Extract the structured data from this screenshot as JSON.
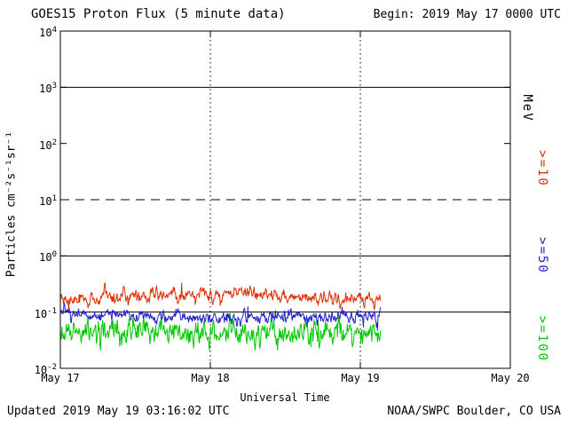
{
  "header": {
    "title": "GOES15 Proton Flux (5 minute data)",
    "begin_label": "Begin: 2019 May 17 0000 UTC"
  },
  "footer": {
    "updated": "Updated 2019 May 19 03:16:02 UTC",
    "source": "NOAA/SWPC Boulder, CO USA"
  },
  "chart_data": {
    "type": "line",
    "title": "GOES15 Proton Flux (5 minute data)",
    "subtitle": "Begin: 2019 May 17 0000 UTC",
    "xlabel": "Universal Time",
    "ylabel": "Particles cm⁻²s⁻¹sr⁻¹",
    "right_axis_label": "MeV",
    "x_axis": {
      "span_days": 3,
      "tick_labels": [
        "May 17",
        "May 18",
        "May 19",
        "May 20"
      ]
    },
    "y_axis": {
      "scale": "log",
      "min_exp": -2,
      "max_exp": 4,
      "tick_exponents": [
        4,
        3,
        2,
        1,
        0,
        -1,
        -2
      ]
    },
    "gridlines": {
      "horizontal": [
        {
          "exp": 3,
          "style": "solid"
        },
        {
          "exp": 1,
          "style": "dashed"
        },
        {
          "exp": 0,
          "style": "solid"
        },
        {
          "exp": -1,
          "style": "solid"
        }
      ],
      "vertical_dotted_at_days": [
        1,
        2
      ]
    },
    "data_coverage": {
      "start": "2019 May 17 0000 UTC",
      "end": "2019 May 19 03:15 UTC",
      "end_day_fraction": 2.136,
      "cadence_minutes": 5
    },
    "series": [
      {
        "name": ">=10",
        "unit": "MeV",
        "color": "#dd2f00",
        "approx_mean_flux": 0.18,
        "approx_flux_range": [
          0.12,
          0.33
        ],
        "sim": {
          "mean_log": -0.73,
          "ar": 0.62,
          "innov": 0.05,
          "wander_amp": 0.055,
          "wander_freq": 2.4,
          "wander_phase": -0.8,
          "clamp": [
            -0.95,
            -0.45
          ],
          "spike_prob": 0.01,
          "spike_log": 0.2
        }
      },
      {
        "name": ">=50",
        "unit": "MeV",
        "color": "#2020cc",
        "approx_mean_flux": 0.085,
        "approx_flux_range": [
          0.05,
          0.2
        ],
        "sim": {
          "mean_log": -1.08,
          "ar": 0.6,
          "innov": 0.05,
          "wander_amp": 0.03,
          "wander_freq": 3.0,
          "wander_phase": 1.0,
          "clamp": [
            -1.33,
            -0.66
          ],
          "spike_prob": 0.006,
          "spike_log": 0.3
        }
      },
      {
        "name": ">=100",
        "unit": "MeV",
        "color": "#00c800",
        "approx_mean_flux": 0.043,
        "approx_flux_range": [
          0.021,
          0.09
        ],
        "sim": {
          "mean_log": -1.37,
          "ar": 0.45,
          "innov": 0.1,
          "wander_amp": 0.02,
          "wander_freq": 3.4,
          "wander_phase": 0.2,
          "clamp": [
            -1.68,
            -1.02
          ],
          "spike_prob": 0.0,
          "spike_log": 0
        }
      }
    ]
  }
}
